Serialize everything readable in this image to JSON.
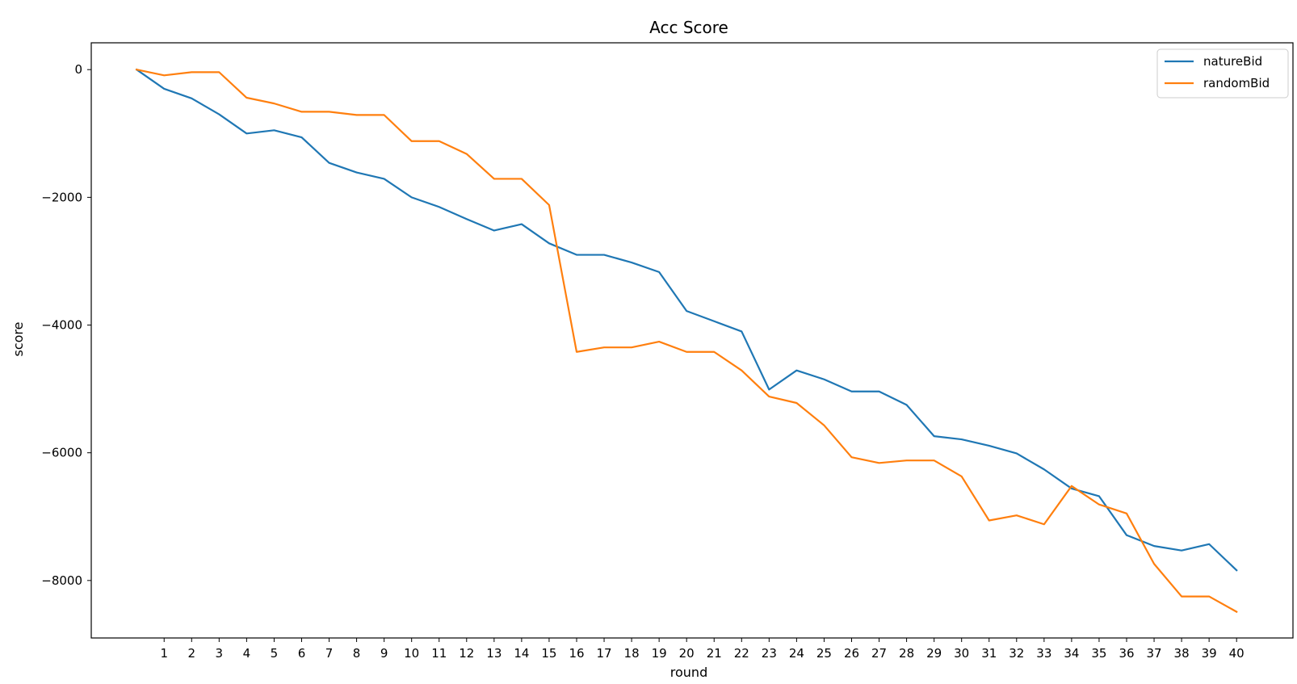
{
  "chart_data": {
    "type": "line",
    "title": "Acc Score",
    "xlabel": "round",
    "ylabel": "score",
    "x": [
      0,
      1,
      2,
      3,
      4,
      5,
      6,
      7,
      8,
      9,
      10,
      11,
      12,
      13,
      14,
      15,
      16,
      17,
      18,
      19,
      20,
      21,
      22,
      23,
      24,
      25,
      26,
      27,
      28,
      29,
      30,
      31,
      32,
      33,
      34,
      35,
      36,
      37,
      38,
      39,
      40
    ],
    "xticks": [
      1,
      2,
      3,
      4,
      5,
      6,
      7,
      8,
      9,
      10,
      11,
      12,
      13,
      14,
      15,
      16,
      17,
      18,
      19,
      20,
      21,
      22,
      23,
      24,
      25,
      26,
      27,
      28,
      29,
      30,
      31,
      32,
      33,
      34,
      35,
      36,
      37,
      38,
      39,
      40
    ],
    "xlim": [
      -1.65,
      42.05
    ],
    "yticks": [
      0,
      -2000,
      -4000,
      -6000,
      -8000
    ],
    "ytick_labels": [
      "0",
      "−2000",
      "−4000",
      "−6000",
      "−8000"
    ],
    "ylim": [
      -8900,
      420
    ],
    "grid": false,
    "legend_position": "top-right",
    "series": [
      {
        "name": "natureBid",
        "color": "#1f77b4",
        "values": [
          0,
          -300,
          -450,
          -700,
          -1000,
          -950,
          -1060,
          -1460,
          -1610,
          -1710,
          -2000,
          -2150,
          -2340,
          -2520,
          -2420,
          -2720,
          -2900,
          -2900,
          -3020,
          -3170,
          -3780,
          -3940,
          -4100,
          -5010,
          -4710,
          -4850,
          -5040,
          -5040,
          -5250,
          -5740,
          -5790,
          -5890,
          -6010,
          -6260,
          -6560,
          -6680,
          -7290,
          -7460,
          -7530,
          -7430,
          -7840
        ]
      },
      {
        "name": "randomBid",
        "color": "#ff7f0e",
        "values": [
          0,
          -90,
          -40,
          -40,
          -440,
          -530,
          -660,
          -660,
          -710,
          -710,
          -1120,
          -1120,
          -1320,
          -1710,
          -1710,
          -2120,
          -4420,
          -4350,
          -4350,
          -4260,
          -4420,
          -4420,
          -4710,
          -5120,
          -5220,
          -5570,
          -6070,
          -6160,
          -6120,
          -6120,
          -6370,
          -7060,
          -6980,
          -7120,
          -6520,
          -6810,
          -6950,
          -7740,
          -8250,
          -8250,
          -8490
        ]
      }
    ]
  }
}
